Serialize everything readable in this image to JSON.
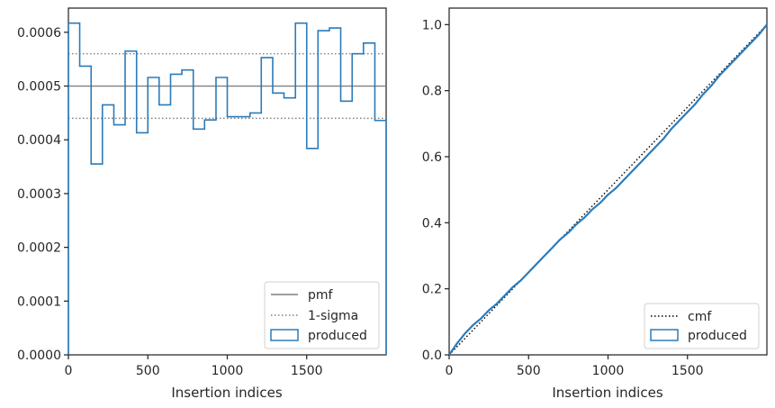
{
  "chart_data": [
    {
      "type": "line",
      "title": "",
      "xlabel": "Insertion indices",
      "ylabel": "",
      "xlim": [
        0,
        2000
      ],
      "ylim": [
        0,
        0.000645
      ],
      "grid": false,
      "legend_position": "lower-right",
      "x_ticks": [
        0,
        500,
        1000,
        1500
      ],
      "x_tick_labels": [
        "0",
        "500",
        "1000",
        "1500"
      ],
      "y_ticks": [
        0,
        0.0001,
        0.0002,
        0.0003,
        0.0004,
        0.0005,
        0.0006
      ],
      "y_tick_labels": [
        "0.0000",
        "0.0001",
        "0.0002",
        "0.0003",
        "0.0004",
        "0.0005",
        "0.0006"
      ],
      "pmf": 0.0005,
      "sigma_band": [
        0.00044,
        0.00056
      ],
      "bin_edges": [
        0,
        71,
        143,
        214,
        286,
        357,
        429,
        500,
        571,
        643,
        714,
        786,
        857,
        929,
        1000,
        1071,
        1143,
        1214,
        1286,
        1357,
        1429,
        1500,
        1571,
        1643,
        1714,
        1786,
        1857,
        1929,
        2000
      ],
      "produced": [
        0.000617,
        0.000537,
        0.000355,
        0.000465,
        0.000428,
        0.000565,
        0.000413,
        0.000516,
        0.000465,
        0.000522,
        0.00053,
        0.00042,
        0.000437,
        0.000516,
        0.000443,
        0.000443,
        0.00045,
        0.000553,
        0.000487,
        0.000478,
        0.000617,
        0.000384,
        0.000603,
        0.000608,
        0.000472,
        0.00056,
        0.00058,
        0.000436
      ],
      "series": [
        {
          "name": "pmf",
          "color": "#808080",
          "style": "solid"
        },
        {
          "name": "1-sigma",
          "color": "#808080",
          "style": "dotted"
        },
        {
          "name": "produced",
          "color": "#2b7bba",
          "style": "step"
        }
      ]
    },
    {
      "type": "line",
      "title": "",
      "xlabel": "Insertion indices",
      "ylabel": "",
      "xlim": [
        0,
        2000
      ],
      "ylim": [
        0,
        1.05
      ],
      "grid": false,
      "legend_position": "lower-right",
      "x_ticks": [
        0,
        500,
        1000,
        1500
      ],
      "x_tick_labels": [
        "0",
        "500",
        "1000",
        "1500"
      ],
      "y_ticks": [
        0,
        0.2,
        0.4,
        0.6,
        0.8,
        1.0
      ],
      "y_tick_labels": [
        "0.0",
        "0.2",
        "0.4",
        "0.6",
        "0.8",
        "1.0"
      ],
      "cmf": {
        "x": [
          0,
          2000
        ],
        "y": [
          0,
          1.0
        ]
      },
      "produced": {
        "x": [
          0,
          50,
          100,
          150,
          200,
          250,
          300,
          350,
          400,
          450,
          500,
          550,
          600,
          650,
          700,
          750,
          800,
          850,
          900,
          950,
          1000,
          1050,
          1100,
          1150,
          1200,
          1250,
          1300,
          1350,
          1400,
          1450,
          1500,
          1550,
          1600,
          1650,
          1700,
          1750,
          1800,
          1850,
          1900,
          1950,
          2000
        ],
        "y": [
          0,
          0.035,
          0.065,
          0.09,
          0.11,
          0.135,
          0.155,
          0.18,
          0.205,
          0.225,
          0.25,
          0.275,
          0.3,
          0.325,
          0.35,
          0.37,
          0.395,
          0.415,
          0.44,
          0.46,
          0.485,
          0.505,
          0.53,
          0.555,
          0.58,
          0.605,
          0.63,
          0.655,
          0.685,
          0.71,
          0.735,
          0.76,
          0.79,
          0.815,
          0.845,
          0.87,
          0.895,
          0.92,
          0.945,
          0.97,
          1.0
        ]
      },
      "series": [
        {
          "name": "cmf",
          "color": "#000000",
          "style": "dotted"
        },
        {
          "name": "produced",
          "color": "#2b7bba",
          "style": "solid"
        }
      ]
    }
  ]
}
